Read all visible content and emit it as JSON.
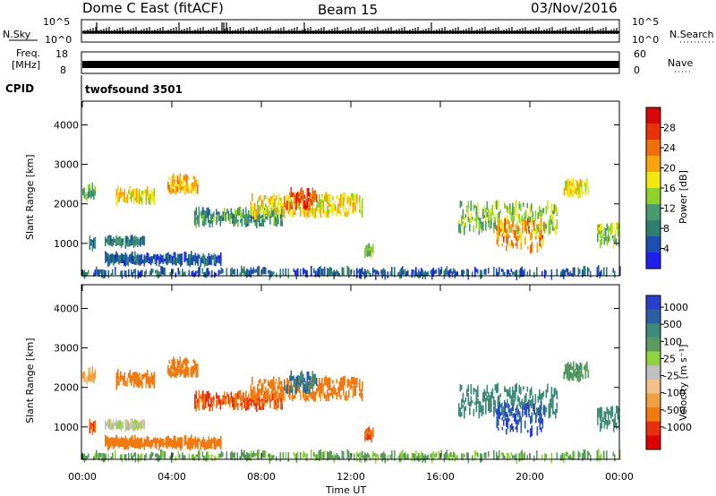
{
  "header": {
    "station": "Dome C East (fitACF)",
    "beam": "Beam 15",
    "date": "03/Nov/2016"
  },
  "strips": {
    "nsky_label": "N.Sky",
    "nsky_ticks": [
      "10^5",
      "10^0"
    ],
    "nsearch_label": "N.Search",
    "nsearch_ticks": [
      "10^5",
      "10^0"
    ],
    "freq_label_line1": "Freq.",
    "freq_label_line2": "[MHz]",
    "freq_ticks": [
      "18",
      "8"
    ],
    "nave_label": "Nave",
    "nave_ticks": [
      "60",
      "0"
    ],
    "cpid_label": "CPID",
    "cpid_value": "twofsound 3501"
  },
  "colors": {
    "power_scale": [
      "#1f1ff0",
      "#1c4fb0",
      "#2f7f6f",
      "#4a9a6e",
      "#8fd12a",
      "#f2e70f",
      "#f7a30e",
      "#f06f0c",
      "#e8330a",
      "#d80808"
    ],
    "velocity_scale": [
      "#2b3fcf",
      "#2d5fa5",
      "#3f8a7a",
      "#5a9a5e",
      "#8fd13f",
      "#c0c0c0",
      "#f2c08a",
      "#f0a040",
      "#f07a10",
      "#e83010",
      "#e00000"
    ]
  },
  "chart_data": [
    {
      "type": "heatmap",
      "title": "Power",
      "xlabel": "Time UT",
      "ylabel": "Slant Range [km]",
      "x_ticks": [
        "00:00",
        "04:00",
        "08:00",
        "12:00",
        "16:00",
        "20:00",
        "00:00"
      ],
      "y_ticks": [
        "1000",
        "2000",
        "3000",
        "4000"
      ],
      "xlim_hours": [
        0,
        24
      ],
      "ylim_km": [
        180,
        4600
      ],
      "colorbar_label": "Power [dB]",
      "colorbar_ticks": [
        "28",
        "24",
        "20",
        "16",
        "12",
        "8",
        "4"
      ],
      "colorbar_range": [
        0,
        32
      ],
      "echo_regions": [
        {
          "t_start": 0.0,
          "t_end": 0.6,
          "r_center": 2300,
          "r_width": 250,
          "level": 12
        },
        {
          "t_start": 0.3,
          "t_end": 0.6,
          "r_center": 1000,
          "r_width": 250,
          "level": 8
        },
        {
          "t_start": 1.0,
          "t_end": 2.8,
          "r_center": 1050,
          "r_width": 100,
          "level": 8
        },
        {
          "t_start": 1.0,
          "t_end": 6.2,
          "r_center": 600,
          "r_width": 150,
          "level": 6
        },
        {
          "t_start": 1.5,
          "t_end": 3.2,
          "r_center": 2200,
          "r_width": 300,
          "level": 18
        },
        {
          "t_start": 3.8,
          "t_end": 5.2,
          "r_center": 2500,
          "r_width": 350,
          "level": 20
        },
        {
          "t_start": 5.0,
          "t_end": 9.0,
          "r_center": 1650,
          "r_width": 350,
          "level": 10
        },
        {
          "t_start": 7.5,
          "t_end": 12.5,
          "r_center": 1950,
          "r_width": 450,
          "level": 18
        },
        {
          "t_start": 9.0,
          "t_end": 10.5,
          "r_center": 2100,
          "r_width": 400,
          "level": 26
        },
        {
          "t_start": 12.6,
          "t_end": 13.0,
          "r_center": 800,
          "r_width": 200,
          "level": 14
        },
        {
          "t_start": 16.8,
          "t_end": 21.2,
          "r_center": 1650,
          "r_width": 700,
          "level": 14
        },
        {
          "t_start": 18.5,
          "t_end": 20.6,
          "r_center": 1200,
          "r_width": 700,
          "level": 22
        },
        {
          "t_start": 21.5,
          "t_end": 22.6,
          "r_center": 2400,
          "r_width": 300,
          "level": 18
        },
        {
          "t_start": 23.0,
          "t_end": 24.0,
          "r_center": 1200,
          "r_width": 500,
          "level": 14
        },
        {
          "t_start": 0.0,
          "t_end": 24.0,
          "r_center": 260,
          "r_width": 120,
          "level": 6
        }
      ]
    },
    {
      "type": "heatmap",
      "title": "Velocity",
      "xlabel": "Time UT",
      "ylabel": "Slant Range [km]",
      "x_ticks": [
        "00:00",
        "04:00",
        "08:00",
        "12:00",
        "16:00",
        "20:00",
        "00:00"
      ],
      "y_ticks": [
        "1000",
        "2000",
        "3000",
        "4000"
      ],
      "xlim_hours": [
        0,
        24
      ],
      "ylim_km": [
        180,
        4600
      ],
      "colorbar_label": "Velocity [m s⁻¹]",
      "colorbar_ticks": [
        "1000",
        "500",
        "100",
        "25",
        "-25",
        "-100",
        "-500",
        "-1000"
      ],
      "echo_regions": [
        {
          "t_start": 0.0,
          "t_end": 0.6,
          "r_center": 2300,
          "r_width": 250,
          "level": -60
        },
        {
          "t_start": 0.3,
          "t_end": 0.6,
          "r_center": 1000,
          "r_width": 250,
          "level": -300
        },
        {
          "t_start": 1.0,
          "t_end": 2.8,
          "r_center": 1050,
          "r_width": 100,
          "level": 0
        },
        {
          "t_start": 1.0,
          "t_end": 6.2,
          "r_center": 600,
          "r_width": 150,
          "level": -200
        },
        {
          "t_start": 1.5,
          "t_end": 3.2,
          "r_center": 2200,
          "r_width": 300,
          "level": -150
        },
        {
          "t_start": 3.8,
          "t_end": 5.2,
          "r_center": 2500,
          "r_width": 350,
          "level": -200
        },
        {
          "t_start": 5.0,
          "t_end": 9.0,
          "r_center": 1650,
          "r_width": 350,
          "level": -300
        },
        {
          "t_start": 7.5,
          "t_end": 12.5,
          "r_center": 1950,
          "r_width": 450,
          "level": -150
        },
        {
          "t_start": 9.0,
          "t_end": 10.5,
          "r_center": 2100,
          "r_width": 400,
          "level": 300
        },
        {
          "t_start": 12.6,
          "t_end": 13.0,
          "r_center": 800,
          "r_width": 200,
          "level": -300
        },
        {
          "t_start": 16.8,
          "t_end": 21.2,
          "r_center": 1650,
          "r_width": 700,
          "level": 200
        },
        {
          "t_start": 18.5,
          "t_end": 20.6,
          "r_center": 1200,
          "r_width": 700,
          "level": 700
        },
        {
          "t_start": 21.5,
          "t_end": 22.6,
          "r_center": 2400,
          "r_width": 300,
          "level": 80
        },
        {
          "t_start": 23.0,
          "t_end": 24.0,
          "r_center": 1200,
          "r_width": 500,
          "level": 150
        },
        {
          "t_start": 0.0,
          "t_end": 24.0,
          "r_center": 260,
          "r_width": 120,
          "level": 50
        }
      ]
    }
  ]
}
